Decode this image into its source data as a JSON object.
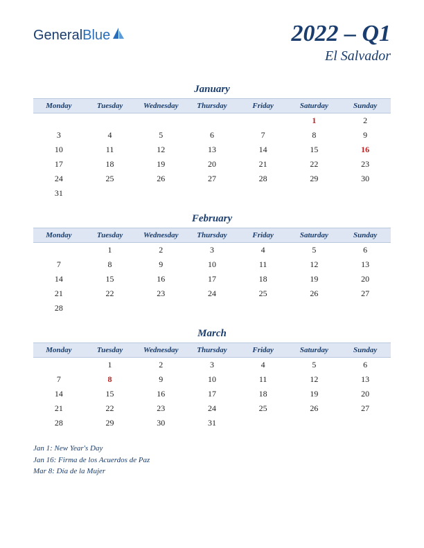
{
  "logo": {
    "text1": "General",
    "text2": "Blue"
  },
  "title": "2022 – Q1",
  "country": "El Salvador",
  "day_headers": [
    "Monday",
    "Tuesday",
    "Wednesday",
    "Thursday",
    "Friday",
    "Saturday",
    "Sunday"
  ],
  "colors": {
    "header_bg": "#dde6f2",
    "accent": "#1a3d6d",
    "holiday": "#c02020"
  },
  "months": [
    {
      "name": "January",
      "weeks": [
        [
          "",
          "",
          "",
          "",
          "",
          "1",
          "2"
        ],
        [
          "3",
          "4",
          "5",
          "6",
          "7",
          "8",
          "9"
        ],
        [
          "10",
          "11",
          "12",
          "13",
          "14",
          "15",
          "16"
        ],
        [
          "17",
          "18",
          "19",
          "20",
          "21",
          "22",
          "23"
        ],
        [
          "24",
          "25",
          "26",
          "27",
          "28",
          "29",
          "30"
        ],
        [
          "31",
          "",
          "",
          "",
          "",
          "",
          ""
        ]
      ],
      "holidays": [
        "1",
        "16"
      ]
    },
    {
      "name": "February",
      "weeks": [
        [
          "",
          "1",
          "2",
          "3",
          "4",
          "5",
          "6"
        ],
        [
          "7",
          "8",
          "9",
          "10",
          "11",
          "12",
          "13"
        ],
        [
          "14",
          "15",
          "16",
          "17",
          "18",
          "19",
          "20"
        ],
        [
          "21",
          "22",
          "23",
          "24",
          "25",
          "26",
          "27"
        ],
        [
          "28",
          "",
          "",
          "",
          "",
          "",
          ""
        ]
      ],
      "holidays": []
    },
    {
      "name": "March",
      "weeks": [
        [
          "",
          "1",
          "2",
          "3",
          "4",
          "5",
          "6"
        ],
        [
          "7",
          "8",
          "9",
          "10",
          "11",
          "12",
          "13"
        ],
        [
          "14",
          "15",
          "16",
          "17",
          "18",
          "19",
          "20"
        ],
        [
          "21",
          "22",
          "23",
          "24",
          "25",
          "26",
          "27"
        ],
        [
          "28",
          "29",
          "30",
          "31",
          "",
          "",
          ""
        ]
      ],
      "holidays": [
        "8"
      ]
    }
  ],
  "holiday_list": [
    "Jan 1: New Year's Day",
    "Jan 16: Firma de los Acuerdos de Paz",
    "Mar 8: Día de la Mujer"
  ]
}
